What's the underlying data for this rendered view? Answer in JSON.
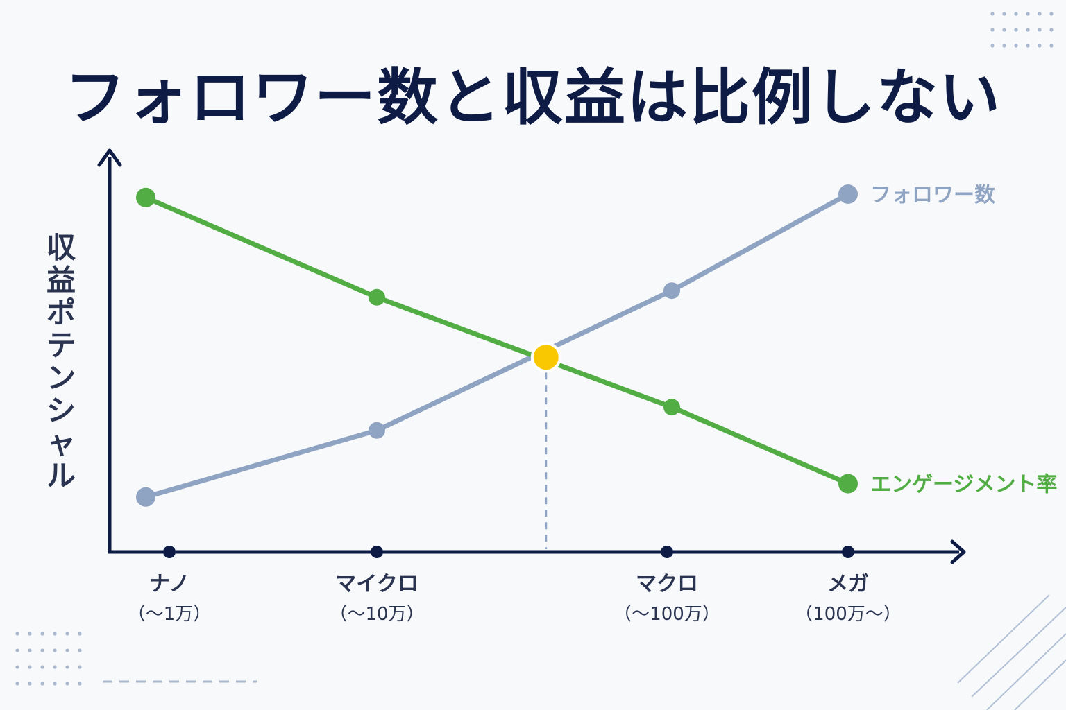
{
  "title": "フォロワー数と収益は比例しない",
  "colors": {
    "title": "#0d1b45",
    "axis": "#0d1b45",
    "engagement": "#52ad44",
    "followers": "#8fa3c2",
    "intersection": "#fac800",
    "decor": "#8fa3c2"
  },
  "chart_data": {
    "type": "line",
    "ylabel": "収益ポテンシャル",
    "xlabel": "",
    "y_ticks_shown": false,
    "categories": [
      {
        "name": "ナノ",
        "range": "（〜1万）"
      },
      {
        "name": "マイクロ",
        "range": "（〜10万）"
      },
      {
        "name": "マクロ",
        "range": "（〜100万）"
      },
      {
        "name": "メガ",
        "range": "（100万〜）"
      }
    ],
    "series": [
      {
        "name": "フォロワー数",
        "color": "#8fa3c2",
        "points": [
          {
            "x": 0,
            "y": 0.09
          },
          {
            "x": 1,
            "y": 0.29
          },
          {
            "x": 2,
            "y": 0.71
          },
          {
            "x": 3,
            "y": 1.0
          }
        ]
      },
      {
        "name": "エンゲージメント率",
        "color": "#52ad44",
        "points": [
          {
            "x": 0,
            "y": 0.99
          },
          {
            "x": 1,
            "y": 0.69
          },
          {
            "x": 2,
            "y": 0.36
          },
          {
            "x": 3,
            "y": 0.13
          }
        ]
      }
    ],
    "intersection": {
      "x": 1.55,
      "y": 0.51
    },
    "ylim": [
      0,
      1
    ],
    "grid": false,
    "legend": "inline-line-end"
  }
}
